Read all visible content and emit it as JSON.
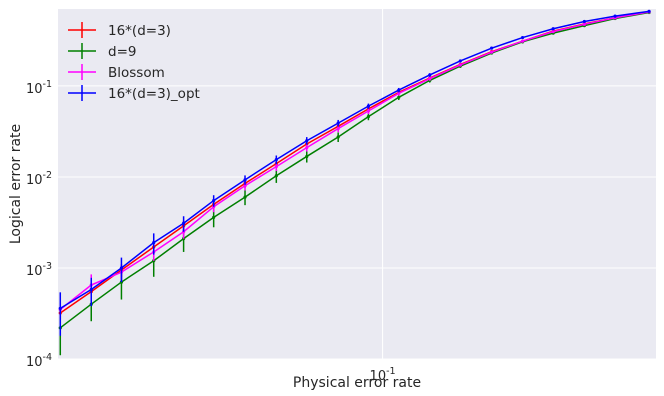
{
  "chart_data": {
    "type": "line",
    "xlabel": "Physical error rate",
    "ylabel": "Logical error rate",
    "xscale": "log",
    "yscale": "log",
    "xlim": [
      0.0148,
      0.5
    ],
    "ylim": [
      0.0001,
      0.7
    ],
    "grid": true,
    "legend_position": "top-left",
    "x_ticks": [
      {
        "value": 0.1,
        "base": "10",
        "exp": "-1"
      }
    ],
    "y_ticks": [
      {
        "value": 0.0001,
        "base": "10",
        "exp": "-4"
      },
      {
        "value": 0.001,
        "base": "10",
        "exp": "-3"
      },
      {
        "value": 0.01,
        "base": "10",
        "exp": "-2"
      },
      {
        "value": 0.1,
        "base": "10",
        "exp": "-1"
      }
    ],
    "x": [
      0.015,
      0.018,
      0.0215,
      0.026,
      0.031,
      0.037,
      0.0445,
      0.0535,
      0.064,
      0.077,
      0.092,
      0.11,
      0.132,
      0.158,
      0.19,
      0.228,
      0.273,
      0.328,
      0.393,
      0.48
    ],
    "series": [
      {
        "name": "16*(d=3)",
        "color": "#ff0000",
        "values": [
          0.00032,
          0.00055,
          0.00095,
          0.0017,
          0.0029,
          0.005,
          0.0085,
          0.014,
          0.023,
          0.036,
          0.056,
          0.085,
          0.122,
          0.172,
          0.238,
          0.31,
          0.4,
          0.48,
          0.56,
          0.65
        ],
        "errors": [
          5e-05,
          8e-05,
          0.00015,
          0.0003,
          0.0004,
          0.0006,
          0.0009,
          0.0014,
          0.002,
          0.003,
          0.004,
          0.005,
          0.006,
          0.007,
          0.008,
          0.009,
          0.01,
          0.011,
          0.012,
          0.013
        ]
      },
      {
        "name": "d=9",
        "color": "#007f00",
        "values": [
          0.00022,
          0.0004,
          0.0007,
          0.0012,
          0.0021,
          0.0036,
          0.006,
          0.0103,
          0.0168,
          0.0275,
          0.046,
          0.075,
          0.115,
          0.165,
          0.23,
          0.305,
          0.38,
          0.46,
          0.55,
          0.64
        ],
        "errors": [
          0.00011,
          0.00014,
          0.00025,
          0.0004,
          0.0006,
          0.0008,
          0.0011,
          0.0017,
          0.0024,
          0.0033,
          0.004,
          0.005,
          0.006,
          0.007,
          0.008,
          0.009,
          0.01,
          0.011,
          0.012,
          0.013
        ]
      },
      {
        "name": "Blossom",
        "color": "#ff00ff",
        "values": [
          0.00035,
          0.00065,
          0.0009,
          0.0015,
          0.0025,
          0.0047,
          0.008,
          0.013,
          0.021,
          0.034,
          0.053,
          0.083,
          0.12,
          0.17,
          0.235,
          0.31,
          0.395,
          0.475,
          0.56,
          0.65
        ],
        "errors": [
          6e-05,
          0.0002,
          0.00016,
          0.0003,
          0.0004,
          0.0006,
          0.0009,
          0.0014,
          0.002,
          0.003,
          0.004,
          0.005,
          0.006,
          0.007,
          0.008,
          0.009,
          0.01,
          0.011,
          0.012,
          0.013
        ]
      },
      {
        "name": "16*(d=3)_opt",
        "color": "#0000ff",
        "values": [
          0.00036,
          0.00058,
          0.001,
          0.0019,
          0.0031,
          0.0055,
          0.0093,
          0.0155,
          0.025,
          0.039,
          0.06,
          0.09,
          0.132,
          0.188,
          0.26,
          0.34,
          0.425,
          0.51,
          0.585,
          0.66
        ],
        "errors": [
          0.00018,
          0.0002,
          0.0003,
          0.0005,
          0.0006,
          0.0008,
          0.0011,
          0.0017,
          0.0024,
          0.0033,
          0.004,
          0.005,
          0.006,
          0.007,
          0.008,
          0.009,
          0.01,
          0.011,
          0.012,
          0.013
        ]
      }
    ]
  }
}
